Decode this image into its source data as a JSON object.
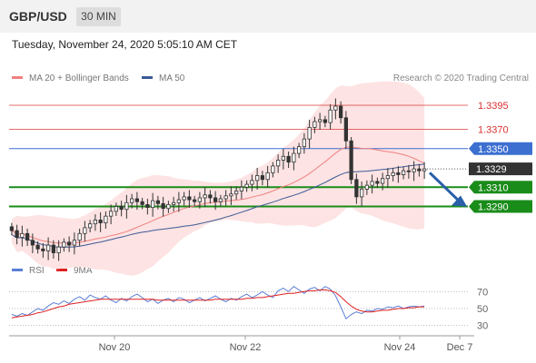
{
  "header": {
    "pair": "GBP/USD",
    "timeframe": "30 MIN"
  },
  "timestamp": "Tuesday, November 24, 2020 5:05:10 AM CET",
  "legend": [
    {
      "label": "MA 20 + Bollinger Bands",
      "color": "#f08080"
    },
    {
      "label": "MA 50",
      "color": "#3c5a96"
    }
  ],
  "credit": "Research © 2020 Trading Central",
  "rsi_legend": [
    {
      "label": "RSI",
      "color": "#5b7fd6"
    },
    {
      "label": "9MA",
      "color": "#e02020"
    }
  ],
  "colors": {
    "resistance": "#d93030",
    "pivot": "#3d6fd1",
    "support": "#1a8c1a",
    "current": "#333333",
    "candle": "#333333",
    "band": "#fde3e3",
    "arrow": "#2a5faa"
  },
  "chart_data": [
    {
      "type": "candlestick",
      "title": "GBP/USD 30 MIN",
      "ylim": [
        1.3235,
        1.341
      ],
      "x_ticks": [
        "Nov 20",
        "Nov 22",
        "Nov 24",
        "Dec 7"
      ],
      "levels": [
        {
          "label": "1.3395",
          "value": 1.3395,
          "kind": "resistance"
        },
        {
          "label": "1.3370",
          "value": 1.337,
          "kind": "resistance"
        },
        {
          "label": "1.3350",
          "value": 1.335,
          "kind": "pivot"
        },
        {
          "label": "1.3329",
          "value": 1.3329,
          "kind": "current"
        },
        {
          "label": "1.3310",
          "value": 1.331,
          "kind": "support"
        },
        {
          "label": "1.3290",
          "value": 1.329,
          "kind": "support"
        }
      ],
      "close": [
        1.3265,
        1.3258,
        1.3262,
        1.3255,
        1.325,
        1.3246,
        1.3244,
        1.325,
        1.3242,
        1.3248,
        1.3253,
        1.325,
        1.3255,
        1.3262,
        1.3268,
        1.3272,
        1.3276,
        1.3273,
        1.328,
        1.3285,
        1.329,
        1.3287,
        1.3294,
        1.3298,
        1.3295,
        1.3292,
        1.3289,
        1.3296,
        1.3293,
        1.3288,
        1.3292,
        1.3294,
        1.3297,
        1.33,
        1.3297,
        1.3295,
        1.3299,
        1.3302,
        1.3299,
        1.3295,
        1.3298,
        1.3301,
        1.3303,
        1.3306,
        1.331,
        1.3313,
        1.3317,
        1.3322,
        1.3318,
        1.3325,
        1.3332,
        1.3338,
        1.3342,
        1.3336,
        1.3345,
        1.3352,
        1.336,
        1.3372,
        1.3378,
        1.338,
        1.3377,
        1.339,
        1.3394,
        1.3382,
        1.3358,
        1.3318,
        1.33,
        1.3308,
        1.3312,
        1.3316,
        1.3314,
        1.3319,
        1.3322,
        1.3325,
        1.3323,
        1.3327,
        1.3326,
        1.3329,
        1.3327,
        1.3329
      ],
      "rsi": {
        "ylim": [
          20,
          80
        ],
        "ticks": [
          70,
          50,
          30
        ],
        "rsi": [
          43,
          41,
          44,
          42,
          46,
          50,
          48,
          53,
          57,
          55,
          59,
          56,
          61,
          64,
          60,
          66,
          63,
          61,
          65,
          60,
          57,
          62,
          59,
          64,
          67,
          63,
          58,
          61,
          56,
          60,
          62,
          58,
          63,
          61,
          57,
          60,
          63,
          59,
          62,
          65,
          61,
          58,
          62,
          60,
          64,
          67,
          63,
          66,
          70,
          66,
          63,
          71,
          74,
          70,
          76,
          72,
          68,
          73,
          75,
          71,
          76,
          73,
          65,
          52,
          38,
          43,
          46,
          44,
          48,
          47,
          50,
          49,
          52,
          51,
          53,
          50,
          52,
          53,
          52,
          53
        ],
        "ma": [
          39,
          40,
          41,
          42,
          43,
          45,
          46,
          48,
          50,
          52,
          53,
          55,
          56,
          57,
          58,
          59,
          60,
          61,
          61,
          61,
          61,
          61,
          61,
          61,
          61,
          61,
          61,
          61,
          60,
          60,
          60,
          60,
          60,
          60,
          60,
          60,
          60,
          60,
          60,
          61,
          61,
          61,
          61,
          61,
          61,
          62,
          62,
          63,
          63,
          64,
          65,
          66,
          67,
          68,
          68,
          69,
          70,
          71,
          71,
          72,
          72,
          71,
          69,
          64,
          58,
          53,
          49,
          47,
          46,
          46,
          47,
          48,
          48,
          49,
          50,
          50,
          51,
          51,
          52,
          52
        ]
      }
    }
  ]
}
